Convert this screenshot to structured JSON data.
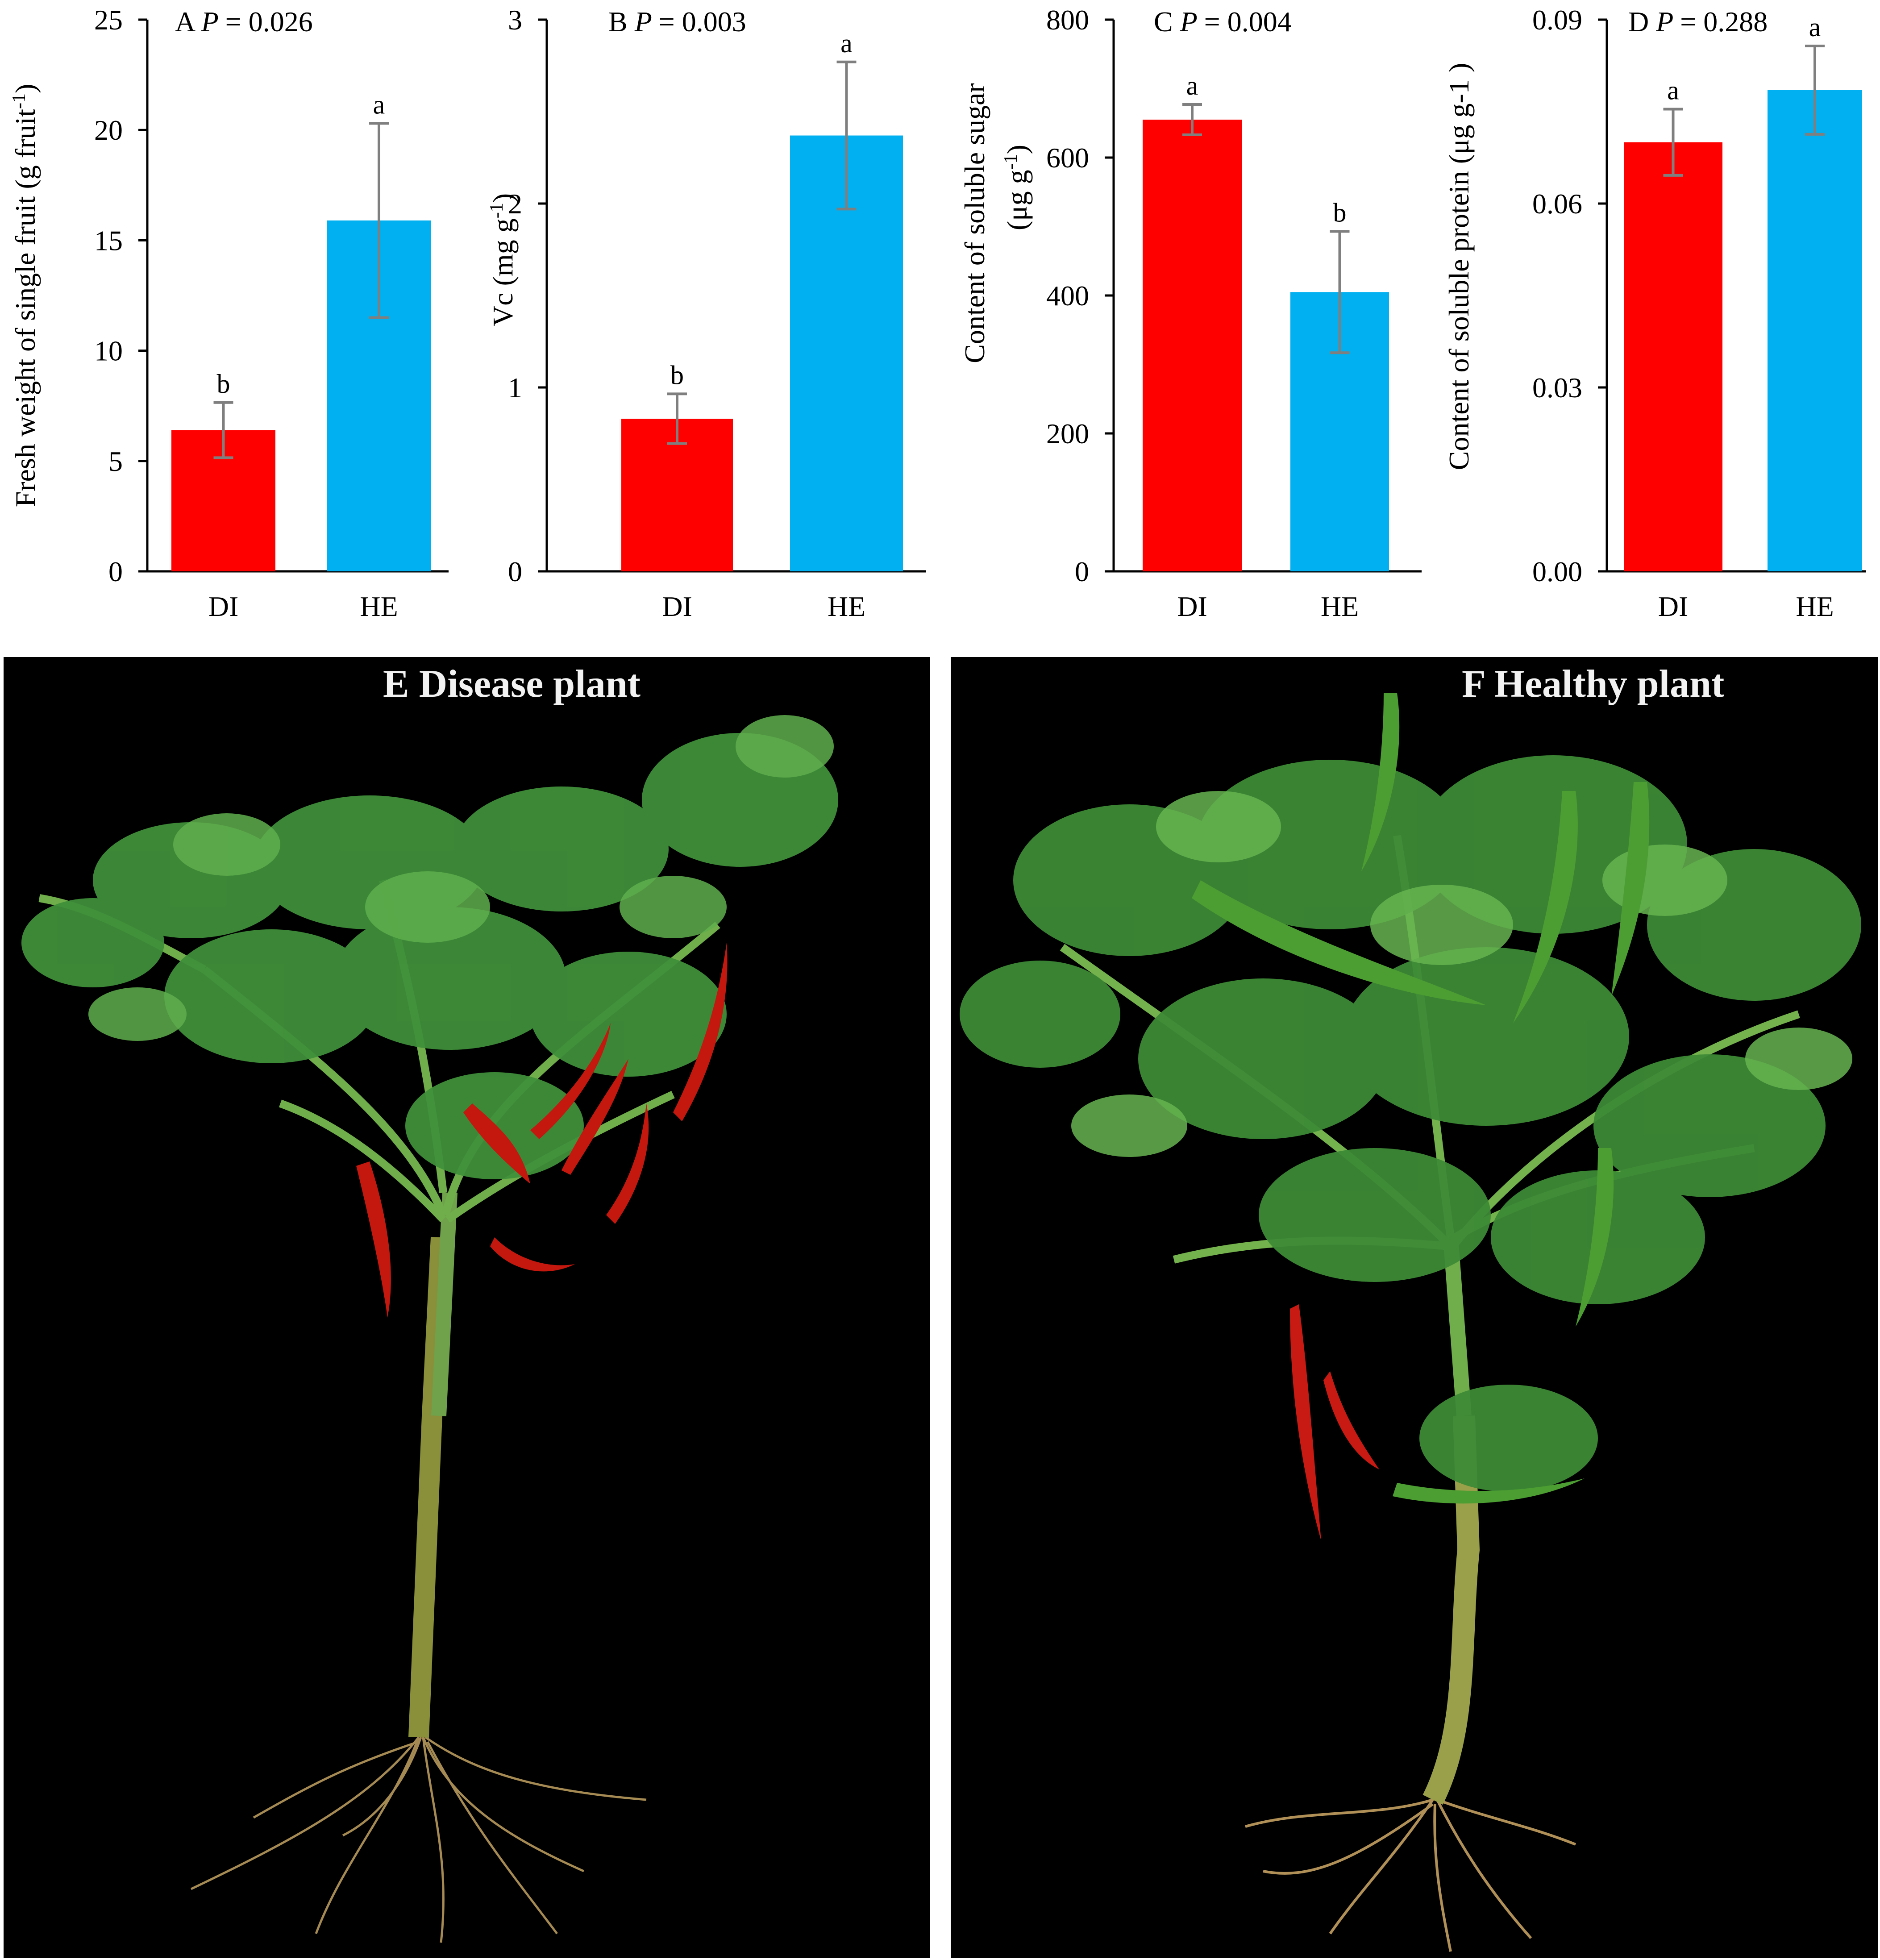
{
  "colors": {
    "di": "#FF0000",
    "he": "#00B0F0",
    "axis": "#000000",
    "error": "#7F7F7F"
  },
  "chart_data": [
    {
      "type": "bar",
      "panel": "A",
      "p_label": "P",
      "p_value": "= 0.026",
      "ylabel": "Fresh weight of single fruit  (g fruit",
      "ylabel_sup": "-1",
      "ylabel_end": ")",
      "ylim": [
        0,
        25
      ],
      "yticks": [
        "0",
        "5",
        "10",
        "15",
        "20",
        "25"
      ],
      "categories": [
        "DI",
        "HE"
      ],
      "values": [
        6.4,
        15.9
      ],
      "errors": [
        1.25,
        4.4
      ],
      "letters": [
        "b",
        "a"
      ]
    },
    {
      "type": "bar",
      "panel": "B",
      "p_label": "P",
      "p_value": "= 0.003",
      "ylabel": "Vc (mg g",
      "ylabel_sup": "-1",
      "ylabel_end": ")",
      "ylim": [
        0,
        3
      ],
      "yticks": [
        "0",
        "1",
        "2",
        "3"
      ],
      "categories": [
        "DI",
        "HE"
      ],
      "values": [
        0.83,
        2.37
      ],
      "errors": [
        0.135,
        0.4
      ],
      "letters": [
        "b",
        "a"
      ]
    },
    {
      "type": "bar",
      "panel": "C",
      "p_label": "P",
      "p_value": "= 0.004",
      "ylabel": "Content of soluble sugar",
      "ylabel2": "(μg g",
      "ylabel2_sup": "-1",
      "ylabel2_end": ")",
      "ylim": [
        0,
        800
      ],
      "yticks": [
        "0",
        "200",
        "400",
        "600",
        "800"
      ],
      "categories": [
        "DI",
        "HE"
      ],
      "values": [
        655,
        405
      ],
      "errors": [
        22,
        88
      ],
      "letters": [
        "a",
        "b"
      ]
    },
    {
      "type": "bar",
      "panel": "D",
      "p_label": "P",
      "p_value": "= 0.288",
      "ylabel": "Content of soluble protein (μg g-1  )",
      "ylim": [
        0,
        0.09
      ],
      "yticks": [
        "0.00",
        "0.03",
        "0.06",
        "0.09"
      ],
      "categories": [
        "DI",
        "HE"
      ],
      "values": [
        0.07,
        0.0785
      ],
      "errors": [
        0.0054,
        0.0072
      ],
      "letters": [
        "a",
        "a"
      ]
    }
  ],
  "photos": {
    "left_label": "E Disease plant",
    "right_label": "F Healthy plant"
  }
}
